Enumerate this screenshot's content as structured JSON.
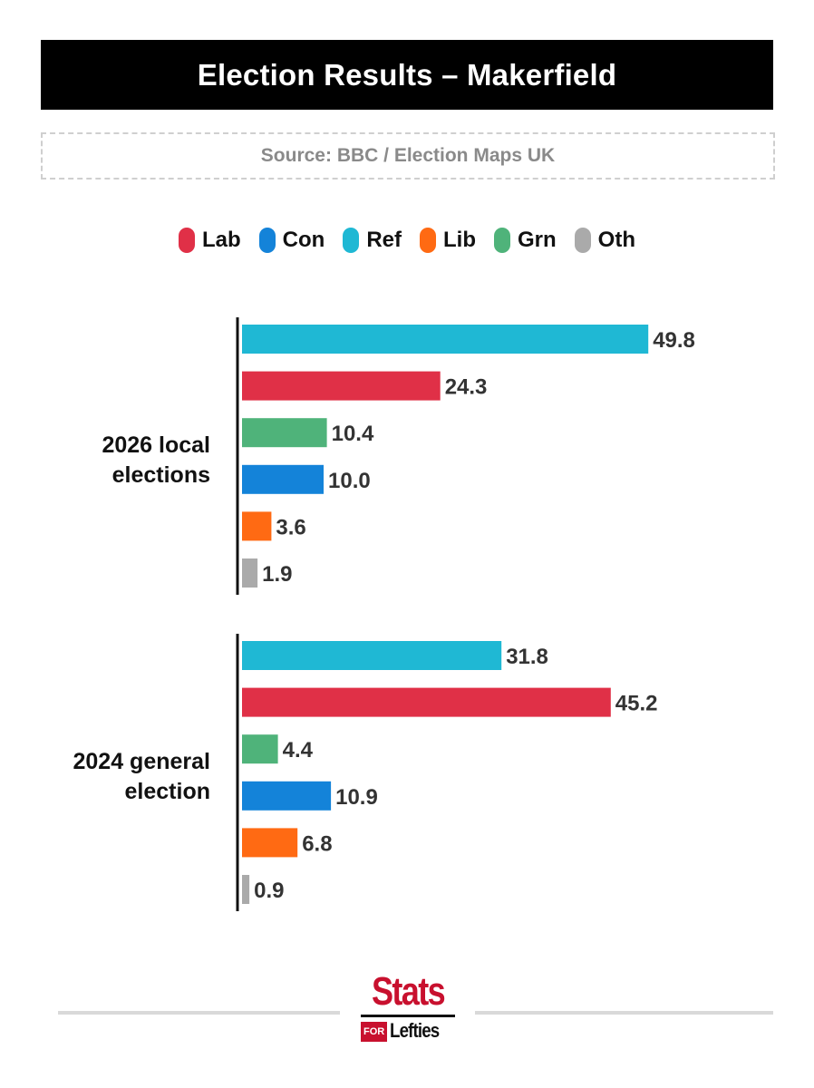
{
  "header": {
    "title": "Election Results – Makerfield",
    "source": "Source: BBC / Election Maps UK"
  },
  "legend": [
    {
      "label": "Lab",
      "color": "#e03047"
    },
    {
      "label": "Con",
      "color": "#1483d9"
    },
    {
      "label": "Ref",
      "color": "#1fb8d4"
    },
    {
      "label": "Lib",
      "color": "#ff6a13"
    },
    {
      "label": "Grn",
      "color": "#4fb37a"
    },
    {
      "label": "Oth",
      "color": "#aaaaaa"
    }
  ],
  "chart_data": {
    "type": "bar",
    "orientation": "horizontal",
    "groups": [
      {
        "label_lines": [
          "2026 local",
          "elections"
        ],
        "bars": [
          {
            "party": "Ref",
            "value": 49.8,
            "label": "49.8"
          },
          {
            "party": "Lab",
            "value": 24.3,
            "label": "24.3"
          },
          {
            "party": "Grn",
            "value": 10.4,
            "label": "10.4"
          },
          {
            "party": "Con",
            "value": 10.0,
            "label": "10.0"
          },
          {
            "party": "Lib",
            "value": 3.6,
            "label": "3.6"
          },
          {
            "party": "Oth",
            "value": 1.9,
            "label": "1.9"
          }
        ]
      },
      {
        "label_lines": [
          "2024 general",
          "election"
        ],
        "bars": [
          {
            "party": "Ref",
            "value": 31.8,
            "label": "31.8"
          },
          {
            "party": "Lab",
            "value": 45.2,
            "label": "45.2"
          },
          {
            "party": "Grn",
            "value": 4.4,
            "label": "4.4"
          },
          {
            "party": "Con",
            "value": 10.9,
            "label": "10.9"
          },
          {
            "party": "Lib",
            "value": 6.8,
            "label": "6.8"
          },
          {
            "party": "Oth",
            "value": 0.9,
            "label": "0.9"
          }
        ]
      }
    ],
    "xlim": [
      0,
      50
    ],
    "grid": false,
    "legend_position": "top"
  },
  "footer": {
    "logo_top": "Stats",
    "logo_for": "FOR",
    "logo_bottom": "Lefties"
  }
}
